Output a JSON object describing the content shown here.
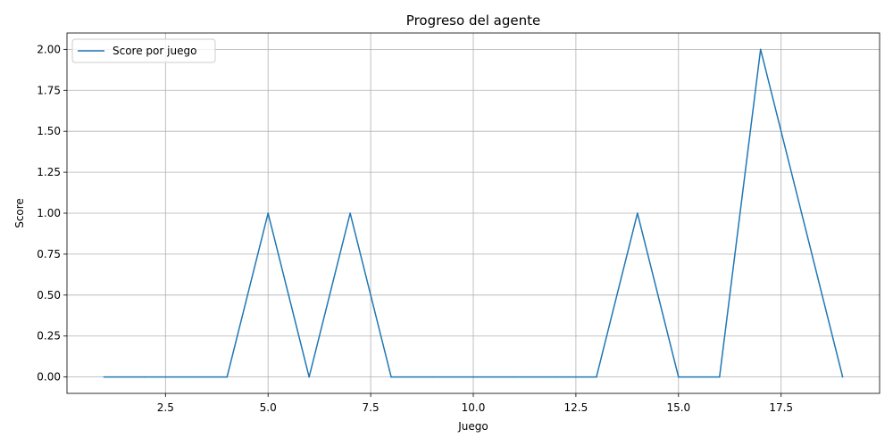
{
  "chart_data": {
    "type": "line",
    "title": "Progreso del agente",
    "xlabel": "Juego",
    "ylabel": "Score",
    "xlim": [
      0.1,
      19.9
    ],
    "ylim": [
      -0.1,
      2.1
    ],
    "xticks": [
      2.5,
      5.0,
      7.5,
      10.0,
      12.5,
      15.0,
      17.5
    ],
    "xtick_labels": [
      "2.5",
      "5.0",
      "7.5",
      "10.0",
      "12.5",
      "15.0",
      "17.5"
    ],
    "yticks": [
      0.0,
      0.25,
      0.5,
      0.75,
      1.0,
      1.25,
      1.5,
      1.75,
      2.0
    ],
    "ytick_labels": [
      "0.00",
      "0.25",
      "0.50",
      "0.75",
      "1.00",
      "1.25",
      "1.50",
      "1.75",
      "2.00"
    ],
    "grid": true,
    "legend_position": "top-left",
    "series": [
      {
        "name": "Score por juego",
        "color": "#1f77b4",
        "x": [
          1,
          2,
          3,
          4,
          5,
          6,
          7,
          8,
          9,
          10,
          11,
          12,
          13,
          14,
          15,
          16,
          17,
          18,
          19
        ],
        "y": [
          0,
          0,
          0,
          0,
          1,
          0,
          1,
          0,
          0,
          0,
          0,
          0,
          0,
          1,
          0,
          0,
          2,
          1,
          0
        ]
      }
    ]
  }
}
